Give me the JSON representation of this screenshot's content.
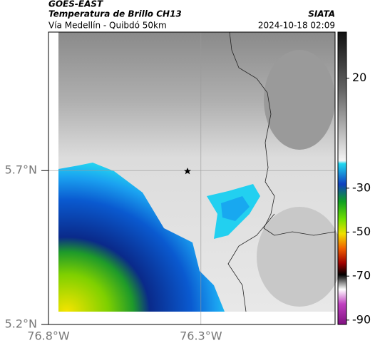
{
  "header": {
    "source": "GOES-EAST",
    "title": "Temperatura de Brillo CH13",
    "agency": "SIATA",
    "subtitle": "Vía Medellín - Quibdó 50km",
    "timestamp": "2024-10-18 02:09"
  },
  "map": {
    "xlim": [
      -76.8,
      -75.86
    ],
    "ylim": [
      5.2,
      6.15
    ],
    "xticks": [
      {
        "value": -76.8,
        "label": "76.8°W"
      },
      {
        "value": -76.3,
        "label": "76.3°W"
      }
    ],
    "yticks": [
      {
        "value": 5.7,
        "label": "5.7°N"
      },
      {
        "value": 5.2,
        "label": "5.2°N"
      }
    ]
  },
  "colorbar": {
    "clim": [
      -92,
      41
    ],
    "ticks": [
      20,
      -30,
      -50,
      -70,
      -90
    ]
  }
}
